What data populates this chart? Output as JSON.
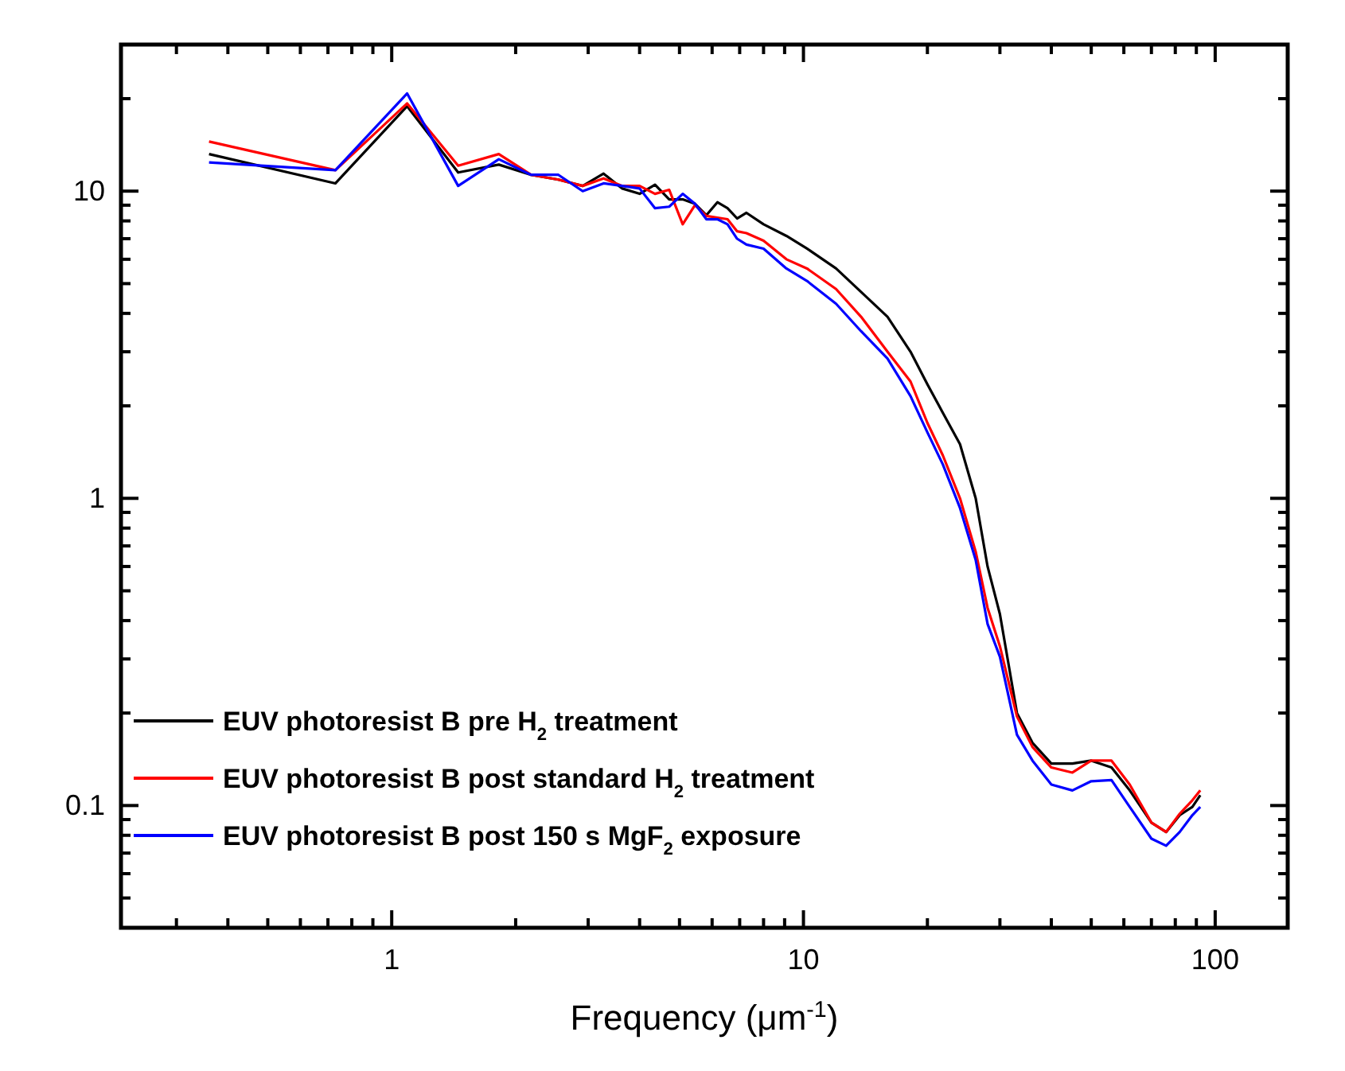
{
  "chart_data": {
    "type": "line",
    "xlabel": "Frequency (μm$^{-1}$)",
    "log": "xy",
    "grid": false,
    "legend": "bottom left",
    "marker": "none",
    "line_style": "solid",
    "xlim": [
      0.22,
      150
    ],
    "ylim": [
      0.04,
      30
    ],
    "xticks": [
      {
        "value": 0.3,
        "label": null
      },
      {
        "value": 0.4,
        "label": null
      },
      {
        "value": 0.5,
        "label": null
      },
      {
        "value": 0.6,
        "label": null
      },
      {
        "value": 0.7,
        "label": null
      },
      {
        "value": 0.8,
        "label": null
      },
      {
        "value": 0.9,
        "label": null
      },
      1,
      {
        "value": 2,
        "label": null
      },
      {
        "value": 3,
        "label": null
      },
      {
        "value": 4,
        "label": null
      },
      {
        "value": 5,
        "label": null
      },
      {
        "value": 6,
        "label": null
      },
      {
        "value": 7,
        "label": null
      },
      {
        "value": 8,
        "label": null
      },
      {
        "value": 9,
        "label": null
      },
      10,
      {
        "value": 20,
        "label": null
      },
      {
        "value": 30,
        "label": null
      },
      {
        "value": 40,
        "label": null
      },
      {
        "value": 50,
        "label": null
      },
      {
        "value": 60,
        "label": null
      },
      {
        "value": 70,
        "label": null
      },
      {
        "value": 80,
        "label": null
      },
      {
        "value": 90,
        "label": null
      },
      100
    ],
    "yticks": [
      {
        "value": 0.04,
        "label": null
      },
      {
        "value": 0.05,
        "label": null
      },
      {
        "value": 0.06,
        "label": null
      },
      {
        "value": 0.07,
        "label": null
      },
      {
        "value": 0.08,
        "label": null
      },
      {
        "value": 0.09,
        "label": null
      },
      0.1,
      {
        "value": 0.2,
        "label": null
      },
      {
        "value": 0.3,
        "label": null
      },
      {
        "value": 0.4,
        "label": null
      },
      {
        "value": 0.5,
        "label": null
      },
      {
        "value": 0.6,
        "label": null
      },
      {
        "value": 0.7,
        "label": null
      },
      {
        "value": 0.8,
        "label": null
      },
      {
        "value": 0.9,
        "label": null
      },
      1,
      {
        "value": 2,
        "label": null
      },
      {
        "value": 3,
        "label": null
      },
      {
        "value": 4,
        "label": null
      },
      {
        "value": 5,
        "label": null
      },
      {
        "value": 6,
        "label": null
      },
      {
        "value": 7,
        "label": null
      },
      {
        "value": 8,
        "label": null
      },
      {
        "value": 9,
        "label": null
      },
      10,
      {
        "value": 20,
        "label": null
      },
      {
        "value": 30,
        "label": null
      }
    ],
    "x": [
      0.36,
      0.73,
      1.09,
      1.45,
      1.82,
      2.18,
      2.54,
      2.91,
      3.27,
      3.63,
      4.0,
      4.36,
      4.72,
      5.09,
      5.45,
      5.81,
      6.18,
      6.54,
      6.9,
      7.27,
      8.0,
      9.09,
      10.2,
      12,
      13.8,
      16,
      18.2,
      20,
      21.8,
      24,
      26.2,
      28,
      30,
      33,
      36,
      40,
      45,
      50,
      56,
      62,
      70,
      76,
      82,
      88,
      92
    ],
    "series": [
      {
        "name": "EUV photoresist B pre H$_{2}$ treatment",
        "color": "#000000",
        "values": [
          13.2,
          10.6,
          18.9,
          11.5,
          12.2,
          11.3,
          10.9,
          10.4,
          11.4,
          10.2,
          9.8,
          10.5,
          9.4,
          9.4,
          9.1,
          8.35,
          9.2,
          8.8,
          8.15,
          8.5,
          7.8,
          7.15,
          6.5,
          5.6,
          4.7,
          3.9,
          3.0,
          2.35,
          1.9,
          1.5,
          1.0,
          0.6,
          0.42,
          0.2,
          0.16,
          0.137,
          0.137,
          0.14,
          0.133,
          0.112,
          0.088,
          0.082,
          0.093,
          0.099,
          0.108
        ]
      },
      {
        "name": "EUV photoresist B post standard H$_{2}$ treatment",
        "color": "#ff0000",
        "values": [
          14.5,
          11.7,
          19.3,
          12.1,
          13.2,
          11.3,
          10.9,
          10.4,
          11.0,
          10.4,
          10.4,
          9.8,
          10.1,
          7.8,
          9.0,
          8.3,
          8.2,
          8.1,
          7.4,
          7.3,
          6.9,
          6.0,
          5.6,
          4.8,
          3.9,
          3.0,
          2.4,
          1.76,
          1.38,
          1.0,
          0.67,
          0.44,
          0.33,
          0.195,
          0.155,
          0.133,
          0.128,
          0.14,
          0.14,
          0.117,
          0.088,
          0.082,
          0.094,
          0.104,
          0.112
        ]
      },
      {
        "name": "EUV photoresist B post 150 s MgF$_{2}$ exposure",
        "color": "#0000ff",
        "values": [
          12.4,
          11.7,
          20.8,
          10.4,
          12.7,
          11.3,
          11.3,
          10.0,
          10.6,
          10.4,
          10.2,
          8.8,
          8.9,
          9.8,
          9.1,
          8.1,
          8.1,
          7.8,
          7.0,
          6.7,
          6.5,
          5.6,
          5.1,
          4.3,
          3.5,
          2.85,
          2.15,
          1.64,
          1.29,
          0.93,
          0.63,
          0.39,
          0.305,
          0.17,
          0.14,
          0.117,
          0.112,
          0.12,
          0.121,
          0.099,
          0.078,
          0.074,
          0.082,
          0.093,
          0.099
        ]
      }
    ]
  }
}
